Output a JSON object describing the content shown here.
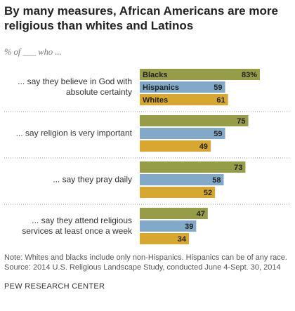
{
  "chart_data": {
    "type": "bar",
    "orientation": "horizontal",
    "title": "By many measures, African Americans are more religious than whites and Latinos",
    "subtitle": "% of ___ who ...",
    "categories": [
      "... say they believe in God with absolute certainty",
      "... say religion is very important",
      "... say they pray daily",
      "... say they attend religious services at least once a week"
    ],
    "series": [
      {
        "name": "Blacks",
        "color": "#969c48",
        "values": [
          83,
          75,
          73,
          47
        ],
        "value_labels": [
          "83%",
          "75",
          "73",
          "47"
        ]
      },
      {
        "name": "Hispanics",
        "color": "#83a9c9",
        "values": [
          59,
          59,
          58,
          39
        ]
      },
      {
        "name": "Whites",
        "color": "#d8a730",
        "values": [
          61,
          49,
          52,
          34
        ]
      }
    ],
    "notes": [
      "Note: Whites and blacks include only non-Hispanics. Hispanics can be of any race.",
      "Source: 2014 U.S. Religious Landscape Study, conducted June 4-Sept. 30, 2014"
    ],
    "source": "PEW RESEARCH CENTER"
  }
}
